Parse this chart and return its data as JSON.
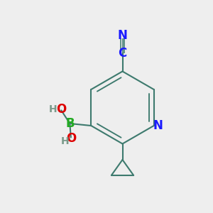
{
  "bg_color": "#eeeeee",
  "bond_color": "#3d7a6e",
  "bond_width": 1.5,
  "atom_colors": {
    "N_ring": "#1a1aff",
    "N_cyano": "#1a1aff",
    "C": "#1a1aff",
    "B": "#22aa22",
    "O": "#dd0000",
    "H": "#7a9a8a"
  },
  "font_size": 12,
  "font_size_H": 10,
  "figsize": [
    3.0,
    3.0
  ],
  "dpi": 100
}
